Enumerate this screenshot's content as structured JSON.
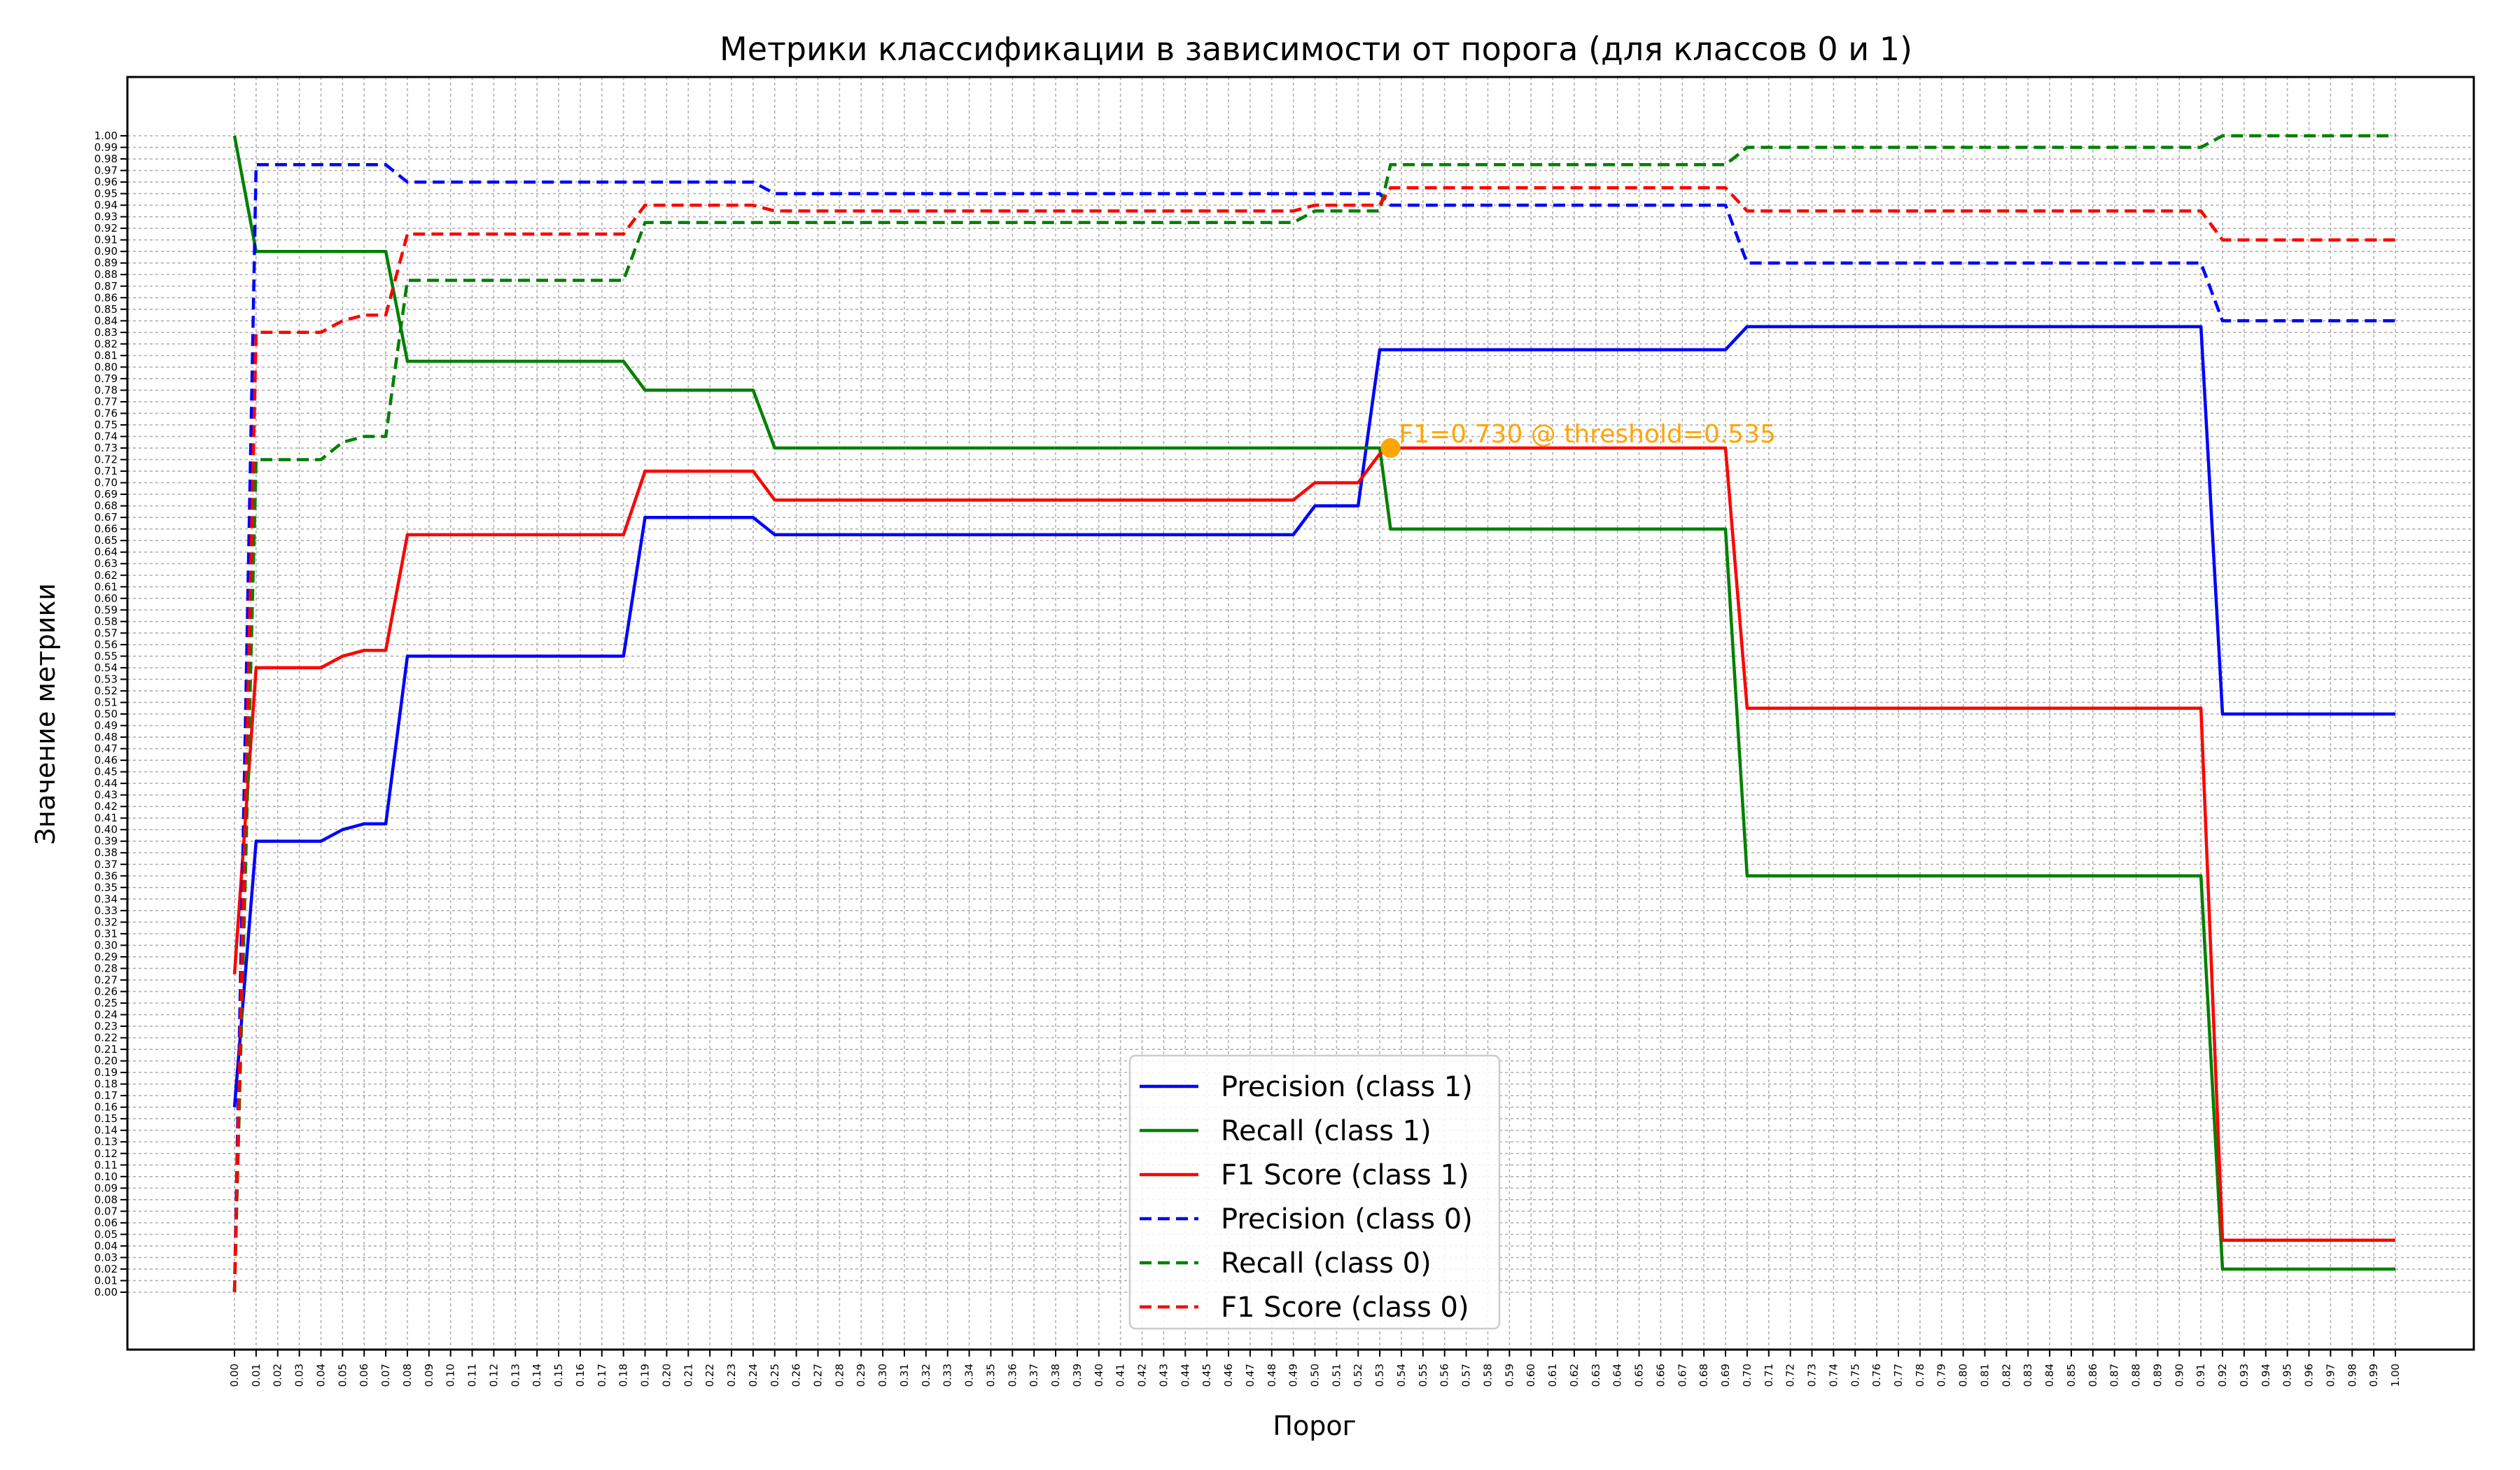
{
  "chart_data": {
    "type": "line",
    "title": "Метрики классификации в зависимости от порога (для классов 0 и 1)",
    "xlabel": "Порог",
    "ylabel": "Значение метрики",
    "xlim": [
      0,
      1
    ],
    "ylim": [
      0,
      1
    ],
    "grid": true,
    "legend_position": "bottom-center",
    "x": [
      0.0,
      0.01,
      0.04,
      0.05,
      0.06,
      0.07,
      0.08,
      0.18,
      0.19,
      0.24,
      0.25,
      0.49,
      0.5,
      0.52,
      0.53,
      0.535,
      0.54,
      0.68,
      0.69,
      0.7,
      0.91,
      0.92,
      1.0
    ],
    "series": [
      {
        "name": "Precision (class 1)",
        "color": "#0000ff",
        "dash": "solid",
        "values": [
          0.16,
          0.39,
          0.39,
          0.4,
          0.405,
          0.405,
          0.55,
          0.55,
          0.67,
          0.67,
          0.655,
          0.655,
          0.68,
          0.68,
          0.815,
          0.815,
          0.815,
          0.815,
          0.815,
          0.835,
          0.835,
          0.5,
          0.5
        ]
      },
      {
        "name": "Recall (class 1)",
        "color": "#008000",
        "dash": "solid",
        "values": [
          1.0,
          0.9,
          0.9,
          0.9,
          0.9,
          0.9,
          0.805,
          0.805,
          0.78,
          0.78,
          0.73,
          0.73,
          0.73,
          0.73,
          0.73,
          0.66,
          0.66,
          0.66,
          0.66,
          0.36,
          0.36,
          0.02,
          0.02
        ]
      },
      {
        "name": "F1 Score (class 1)",
        "color": "#ff0000",
        "dash": "solid",
        "values": [
          0.275,
          0.54,
          0.54,
          0.55,
          0.555,
          0.555,
          0.655,
          0.655,
          0.71,
          0.71,
          0.685,
          0.685,
          0.7,
          0.7,
          0.725,
          0.73,
          0.73,
          0.73,
          0.73,
          0.505,
          0.505,
          0.045,
          0.045
        ]
      },
      {
        "name": "Precision (class 0)",
        "color": "#0000ff",
        "dash": "dashed",
        "values": [
          0.0,
          0.975,
          0.975,
          0.975,
          0.975,
          0.975,
          0.96,
          0.96,
          0.96,
          0.96,
          0.95,
          0.95,
          0.95,
          0.95,
          0.95,
          0.94,
          0.94,
          0.94,
          0.94,
          0.89,
          0.89,
          0.84,
          0.84
        ]
      },
      {
        "name": "Recall (class 0)",
        "color": "#008000",
        "dash": "dashed",
        "values": [
          0.0,
          0.72,
          0.72,
          0.735,
          0.74,
          0.74,
          0.875,
          0.875,
          0.925,
          0.925,
          0.925,
          0.925,
          0.935,
          0.935,
          0.935,
          0.975,
          0.975,
          0.975,
          0.975,
          0.99,
          0.99,
          1.0,
          1.0
        ]
      },
      {
        "name": "F1 Score (class 0)",
        "color": "#ff0000",
        "dash": "dashed",
        "values": [
          0.0,
          0.83,
          0.83,
          0.84,
          0.845,
          0.845,
          0.915,
          0.915,
          0.94,
          0.94,
          0.935,
          0.935,
          0.94,
          0.94,
          0.94,
          0.955,
          0.955,
          0.955,
          0.955,
          0.935,
          0.935,
          0.91,
          0.91
        ]
      }
    ],
    "annotation": {
      "text": "F1=0.730 @ threshold=0.535",
      "x": 0.535,
      "y": 0.73,
      "color": "#ffa500"
    }
  }
}
